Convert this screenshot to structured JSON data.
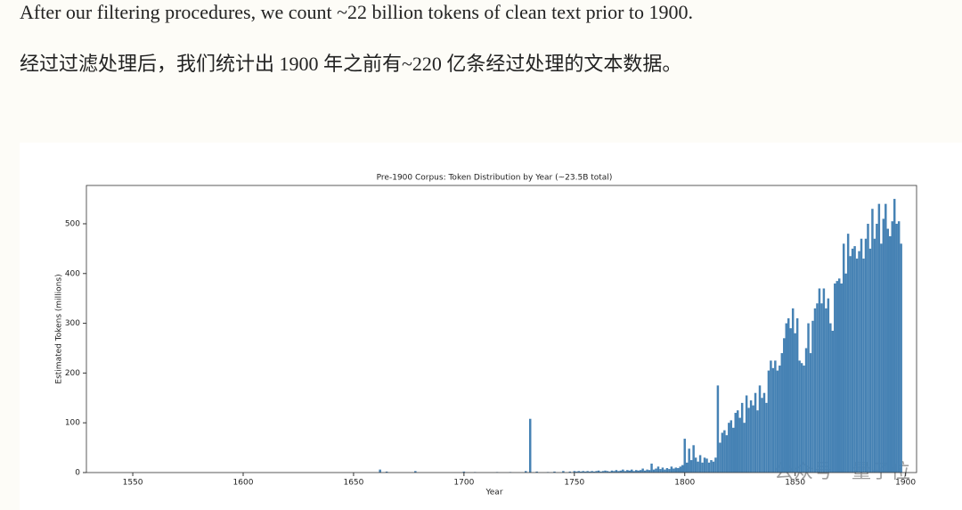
{
  "text": {
    "line_1": "After our filtering procedures, we count ~22 billion tokens of clean text prior to 1900.",
    "line_2": "经过过滤处理后，我们统计出 1900 年之前有~220 亿条经过处理的文本数据。"
  },
  "watermark": "公众号 · 量子位",
  "chart_data": {
    "type": "bar",
    "title": "Pre-1900 Corpus: Token Distribution by Year (~23.5B total)",
    "x_label": "Year",
    "y_label": "Estimated Tokens (millions)",
    "color": "#4682b4",
    "x": [
      1662,
      1665,
      1678,
      1700,
      1705,
      1715,
      1721,
      1728,
      1730,
      1733,
      1738,
      1741,
      1745,
      1748,
      1750,
      1751,
      1752,
      1753,
      1754,
      1755,
      1756,
      1757,
      1758,
      1759,
      1760,
      1761,
      1762,
      1763,
      1764,
      1765,
      1766,
      1767,
      1768,
      1769,
      1770,
      1771,
      1772,
      1773,
      1774,
      1775,
      1776,
      1777,
      1778,
      1779,
      1780,
      1781,
      1782,
      1783,
      1784,
      1785,
      1786,
      1787,
      1788,
      1789,
      1790,
      1791,
      1792,
      1793,
      1794,
      1795,
      1796,
      1797,
      1798,
      1799,
      1800,
      1801,
      1802,
      1803,
      1804,
      1805,
      1806,
      1807,
      1808,
      1809,
      1810,
      1811,
      1812,
      1813,
      1814,
      1815,
      1816,
      1817,
      1818,
      1819,
      1820,
      1821,
      1822,
      1823,
      1824,
      1825,
      1826,
      1827,
      1828,
      1829,
      1830,
      1831,
      1832,
      1833,
      1834,
      1835,
      1836,
      1837,
      1838,
      1839,
      1840,
      1841,
      1842,
      1843,
      1844,
      1845,
      1846,
      1847,
      1848,
      1849,
      1850,
      1851,
      1852,
      1853,
      1854,
      1855,
      1856,
      1857,
      1858,
      1859,
      1860,
      1861,
      1862,
      1863,
      1864,
      1865,
      1866,
      1867,
      1868,
      1869,
      1870,
      1871,
      1872,
      1873,
      1874,
      1875,
      1876,
      1877,
      1878,
      1879,
      1880,
      1881,
      1882,
      1883,
      1884,
      1885,
      1886,
      1887,
      1888,
      1889,
      1890,
      1891,
      1892,
      1893,
      1894,
      1895,
      1896,
      1897,
      1898
    ],
    "values": [
      6,
      2,
      3,
      2,
      1,
      1,
      1,
      3,
      108,
      2,
      1,
      2,
      3,
      2,
      3,
      2,
      3,
      2,
      3,
      2,
      3,
      2,
      3,
      2,
      3,
      4,
      2,
      3,
      4,
      3,
      2,
      4,
      3,
      5,
      3,
      4,
      6,
      3,
      5,
      4,
      6,
      3,
      5,
      4,
      5,
      8,
      4,
      6,
      5,
      18,
      6,
      8,
      12,
      7,
      10,
      6,
      9,
      7,
      12,
      8,
      10,
      9,
      12,
      15,
      68,
      20,
      48,
      25,
      55,
      30,
      22,
      35,
      20,
      30,
      28,
      20,
      25,
      22,
      30,
      175,
      60,
      80,
      85,
      75,
      100,
      105,
      90,
      120,
      125,
      110,
      140,
      100,
      155,
      130,
      145,
      135,
      160,
      125,
      175,
      150,
      160,
      140,
      205,
      225,
      210,
      225,
      205,
      215,
      240,
      270,
      300,
      310,
      290,
      330,
      280,
      310,
      225,
      220,
      215,
      250,
      300,
      240,
      305,
      330,
      340,
      370,
      340,
      370,
      330,
      350,
      300,
      285,
      380,
      385,
      390,
      380,
      460,
      400,
      480,
      435,
      450,
      455,
      430,
      445,
      470,
      430,
      470,
      500,
      450,
      530,
      470,
      500,
      540,
      460,
      510,
      540,
      490,
      475,
      505,
      550,
      500,
      505,
      460
    ],
    "xlim": [
      1529,
      1905
    ],
    "ylim": [
      0,
      577
    ],
    "xticks": [
      1550,
      1600,
      1650,
      1700,
      1750,
      1800,
      1850,
      1900
    ],
    "yticks": [
      0,
      100,
      200,
      300,
      400,
      500
    ]
  }
}
